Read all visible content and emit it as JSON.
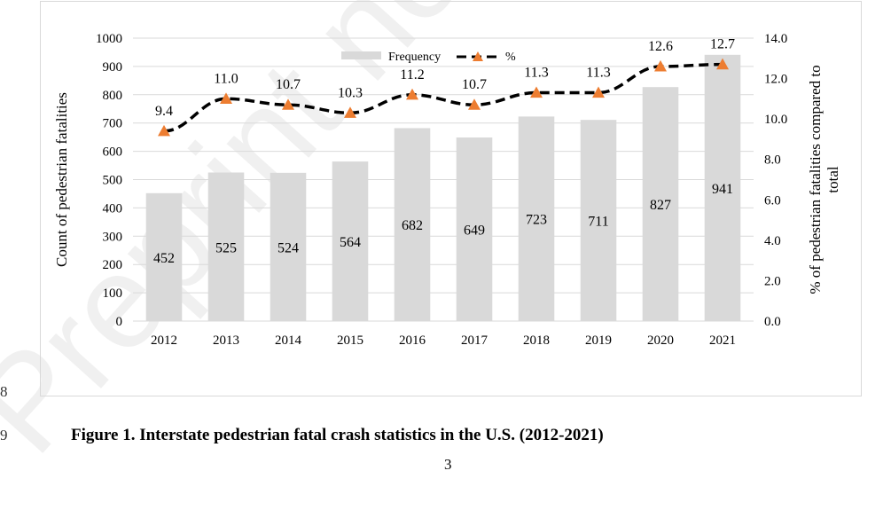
{
  "page": {
    "line_numbers": [
      "8",
      "9"
    ],
    "caption": "Figure 1. Interstate pedestrian fatal crash statistics in the U.S. (2012-2021)",
    "page_number": "3",
    "watermark": "Preprint not"
  },
  "chart_data": {
    "type": "bar",
    "categories": [
      "2012",
      "2013",
      "2014",
      "2015",
      "2016",
      "2017",
      "2018",
      "2019",
      "2020",
      "2021"
    ],
    "series": [
      {
        "name": "Frequency",
        "type": "bar",
        "axis": "left",
        "color": "#d9d9d9",
        "values": [
          452,
          525,
          524,
          564,
          682,
          649,
          723,
          711,
          827,
          941
        ],
        "labels": [
          "452",
          "525",
          "524",
          "564",
          "682",
          "649",
          "723",
          "711",
          "827",
          "941"
        ]
      },
      {
        "name": "%",
        "type": "line",
        "axis": "right",
        "color": "#000000",
        "marker_color": "#ed7d31",
        "values": [
          9.4,
          11.0,
          10.7,
          10.3,
          11.2,
          10.7,
          11.3,
          11.3,
          12.6,
          12.7
        ],
        "labels": [
          "9.4",
          "11.0",
          "10.7",
          "10.3",
          "11.2",
          "10.7",
          "11.3",
          "11.3",
          "12.6",
          "12.7"
        ]
      }
    ],
    "ylabel": "Count of pedestrian fatalities",
    "y2label_lines": [
      "% of pedestrian fatalities compared to",
      "total"
    ],
    "ylim": [
      0,
      1000
    ],
    "y2lim": [
      0,
      14
    ],
    "yticks": [
      "0",
      "100",
      "200",
      "300",
      "400",
      "500",
      "600",
      "700",
      "800",
      "900",
      "1000"
    ],
    "y2ticks": [
      "0.0",
      "2.0",
      "4.0",
      "6.0",
      "8.0",
      "10.0",
      "12.0",
      "14.0"
    ],
    "grid": true,
    "legend_position": "top-center"
  }
}
